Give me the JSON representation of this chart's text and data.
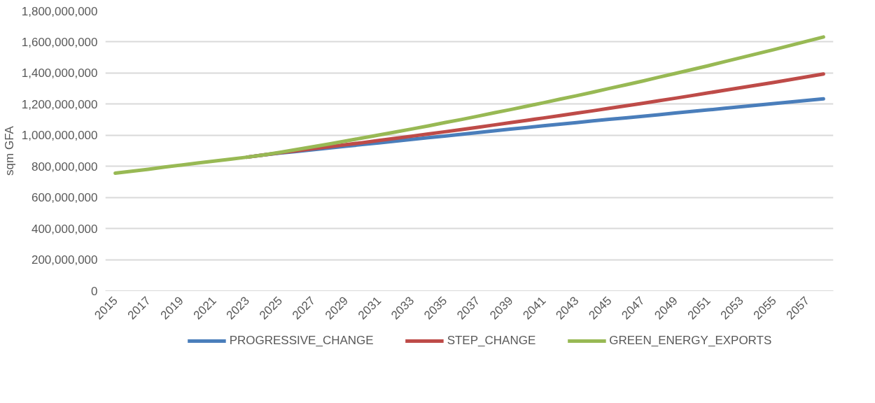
{
  "chart_data": {
    "type": "line",
    "ylabel": "sqm GFA",
    "categories": [
      "2015",
      null,
      "2017",
      null,
      "2019",
      null,
      "2021",
      null,
      "2023",
      null,
      "2025",
      null,
      "2027",
      null,
      "2029",
      null,
      "2031",
      null,
      "2033",
      null,
      "2035",
      null,
      "2037",
      null,
      "2039",
      null,
      "2041",
      null,
      "2043",
      null,
      "2045",
      null,
      "2047",
      null,
      "2049",
      null,
      "2051",
      null,
      "2053",
      null,
      "2055",
      null,
      "2057",
      null
    ],
    "series": [
      {
        "name": "PROGRESSIVE_CHANGE",
        "color": "#4a7ebb",
        "values": [
          null,
          null,
          null,
          null,
          null,
          null,
          null,
          null,
          859000000,
          873000000,
          885000000,
          896000000,
          907000000,
          918000000,
          929000000,
          940000000,
          951000000,
          962000000,
          973000000,
          984000000,
          995000000,
          1006000000,
          1017000000,
          1028000000,
          1039000000,
          1050000000,
          1061000000,
          1071000000,
          1081000000,
          1092000000,
          1102000000,
          1112000000,
          1122000000,
          1132000000,
          1143000000,
          1153000000,
          1163000000,
          1173000000,
          1183000000,
          1194000000,
          1204000000,
          1214000000,
          1224000000,
          1234000000
        ]
      },
      {
        "name": "STEP_CHANGE",
        "color": "#be4b48",
        "values": [
          null,
          null,
          null,
          null,
          null,
          null,
          null,
          null,
          859000000,
          873000000,
          887000000,
          900000000,
          913000000,
          926000000,
          939000000,
          952000000,
          966000000,
          980000000,
          994000000,
          1008000000,
          1022000000,
          1036000000,
          1051000000,
          1066000000,
          1081000000,
          1096000000,
          1111000000,
          1126000000,
          1142000000,
          1157000000,
          1173000000,
          1189000000,
          1205000000,
          1222000000,
          1238000000,
          1255000000,
          1272000000,
          1289000000,
          1306000000,
          1323000000,
          1340000000,
          1358000000,
          1376000000,
          1394000000
        ]
      },
      {
        "name": "GREEN_ENERGY_EXPORTS",
        "color": "#98b954",
        "values": [
          756000000,
          768000000,
          781000000,
          795000000,
          808000000,
          821000000,
          834000000,
          846000000,
          859000000,
          873000000,
          890000000,
          908000000,
          926000000,
          944000000,
          963000000,
          982000000,
          1001000000,
          1020000000,
          1040000000,
          1060000000,
          1081000000,
          1101000000,
          1122000000,
          1144000000,
          1165000000,
          1187000000,
          1209000000,
          1232000000,
          1254000000,
          1277000000,
          1301000000,
          1324000000,
          1348000000,
          1373000000,
          1397000000,
          1422000000,
          1447000000,
          1473000000,
          1499000000,
          1525000000,
          1551000000,
          1578000000,
          1605000000,
          1632000000
        ]
      }
    ],
    "ylim": [
      0,
      1800000000
    ],
    "yticks": [
      {
        "value": 0,
        "label": "0"
      },
      {
        "value": 200000000,
        "label": "200,000,000"
      },
      {
        "value": 400000000,
        "label": "400,000,000"
      },
      {
        "value": 600000000,
        "label": "600,000,000"
      },
      {
        "value": 800000000,
        "label": "800,000,000"
      },
      {
        "value": 1000000000,
        "label": "1,000,000,000"
      },
      {
        "value": 1200000000,
        "label": "1,200,000,000"
      },
      {
        "value": 1400000000,
        "label": "1,400,000,000"
      },
      {
        "value": 1600000000,
        "label": "1,600,000,000"
      },
      {
        "value": 1800000000,
        "label": "1,800,000,000"
      }
    ],
    "grid": "y",
    "legend": "bottom",
    "marker": "none",
    "line_style": "solid"
  }
}
